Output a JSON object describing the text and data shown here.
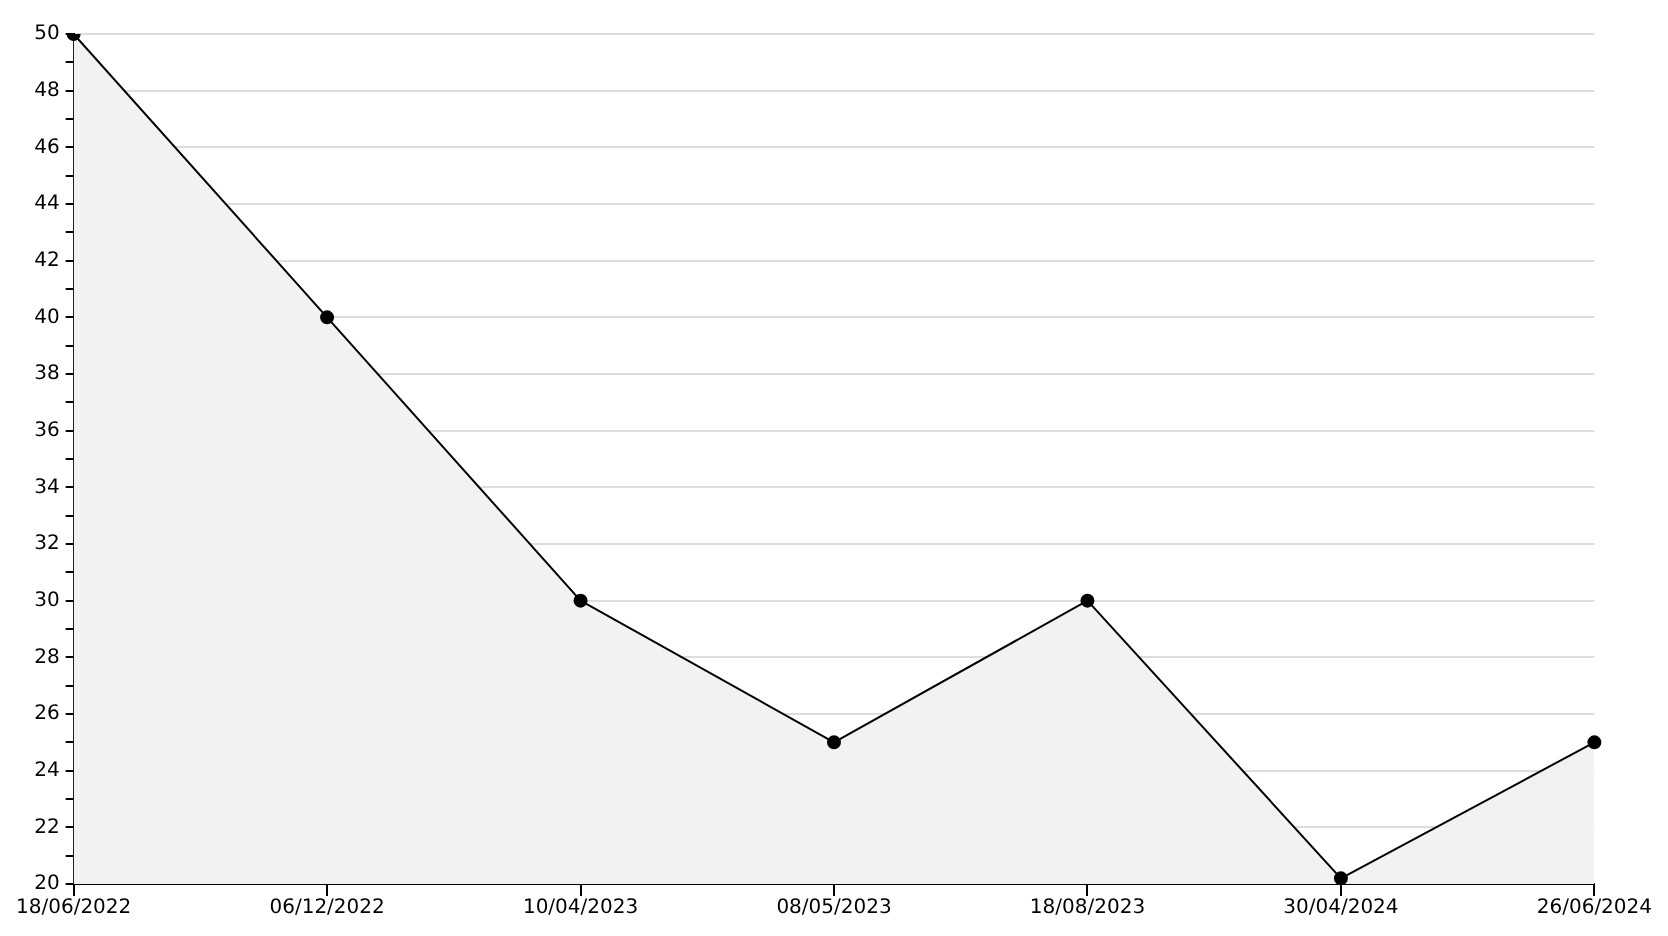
{
  "chart_data": {
    "type": "area",
    "categories": [
      "18/06/2022",
      "06/12/2022",
      "10/04/2023",
      "08/05/2023",
      "18/08/2023",
      "30/04/2024",
      "26/06/2024"
    ],
    "series": [
      {
        "color": "#000000",
        "values": [
          50,
          40,
          30,
          25,
          30,
          20.2,
          25
        ]
      }
    ],
    "ylim": [
      20,
      50
    ],
    "yticks": [
      20,
      {
        "value": 21,
        "label": null
      },
      22,
      {
        "value": 23,
        "label": null
      },
      24,
      {
        "value": 25,
        "label": null
      },
      26,
      {
        "value": 27,
        "label": null
      },
      28,
      {
        "value": 29,
        "label": null
      },
      30,
      {
        "value": 31,
        "label": null
      },
      32,
      {
        "value": 33,
        "label": null
      },
      34,
      {
        "value": 35,
        "label": null
      },
      36,
      {
        "value": 37,
        "label": null
      },
      38,
      {
        "value": 39,
        "label": null
      },
      40,
      {
        "value": 41,
        "label": null
      },
      42,
      {
        "value": 43,
        "label": null
      },
      44,
      {
        "value": 45,
        "label": null
      },
      46,
      {
        "value": 47,
        "label": null
      },
      48,
      {
        "value": 49,
        "label": null
      },
      50
    ],
    "grid": "y",
    "marker": "circle",
    "legend": false
  }
}
